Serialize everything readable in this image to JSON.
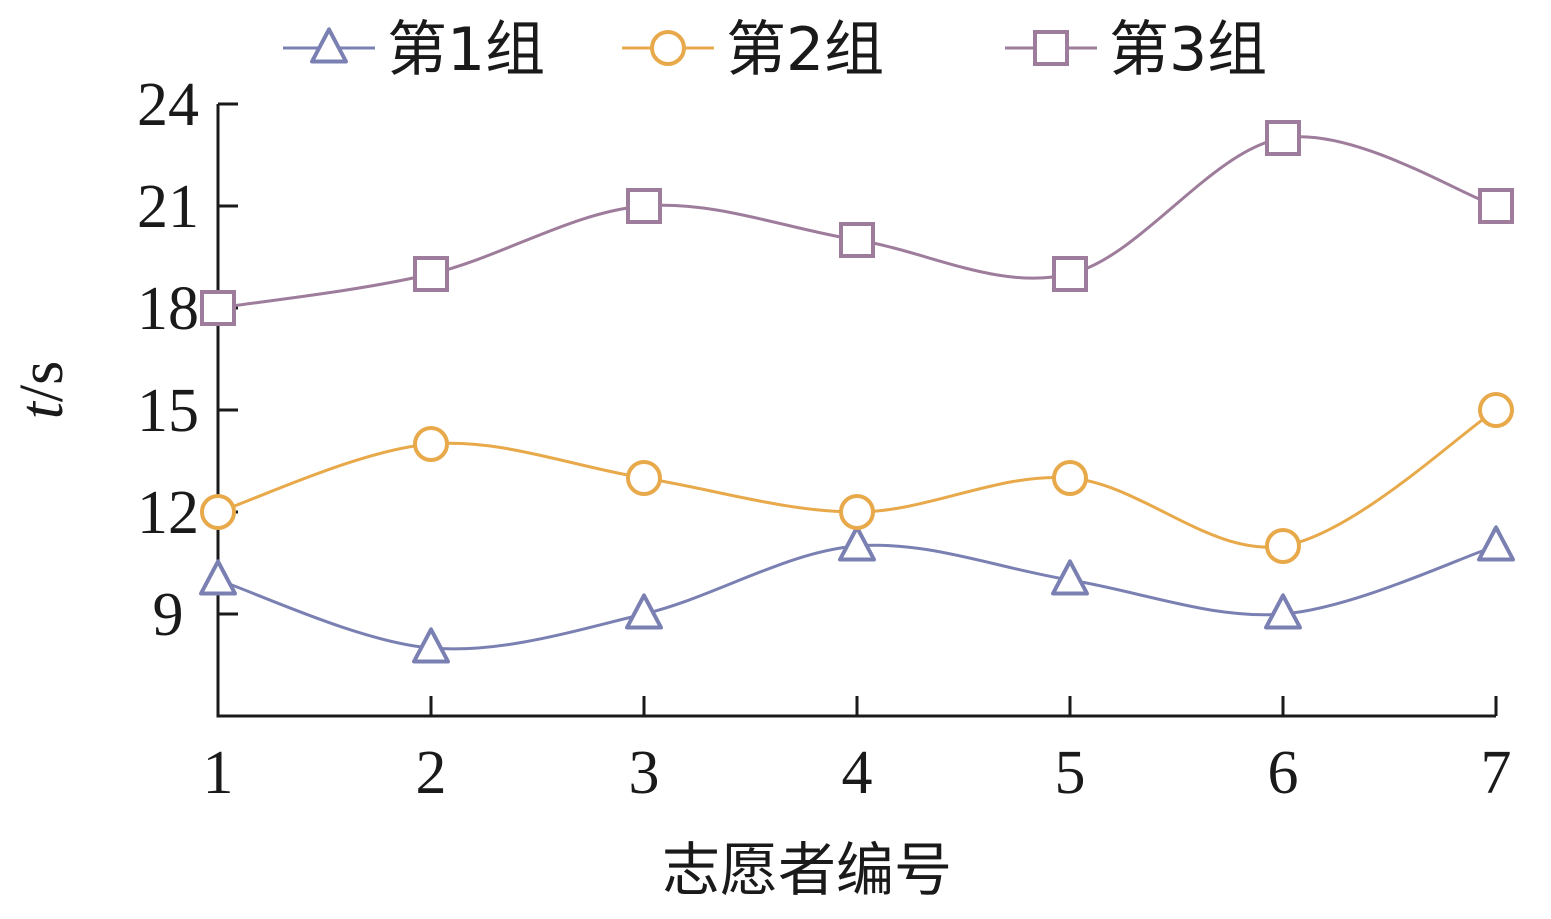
{
  "chart_data": {
    "type": "line",
    "xlabel": "志愿者编号",
    "ylabel": "t/s",
    "ylabel_italic_part": "t",
    "ylabel_unit_part": "/s",
    "x": [
      1,
      2,
      3,
      4,
      5,
      6,
      7
    ],
    "x_tick_labels": [
      "1",
      "2",
      "3",
      "4",
      "5",
      "6",
      "7"
    ],
    "y_ticks": [
      9,
      12,
      15,
      18,
      21,
      24
    ],
    "y_tick_labels": [
      "9",
      "12",
      "15",
      "18",
      "21",
      "24"
    ],
    "xlim": [
      1,
      7
    ],
    "ylim": [
      6,
      24
    ],
    "grid": false,
    "legend_position": "top",
    "series": [
      {
        "name": "第1组",
        "marker": "triangle",
        "color": "#7b80b3",
        "values": [
          10,
          8,
          9,
          11,
          10,
          9,
          11
        ]
      },
      {
        "name": "第2组",
        "marker": "circle",
        "color": "#e8a94a",
        "values": [
          12,
          14,
          13,
          12,
          13,
          11,
          15
        ]
      },
      {
        "name": "第3组",
        "marker": "square",
        "color": "#9e7c9b",
        "values": [
          18,
          19,
          21,
          20,
          19,
          23,
          21
        ]
      }
    ]
  }
}
